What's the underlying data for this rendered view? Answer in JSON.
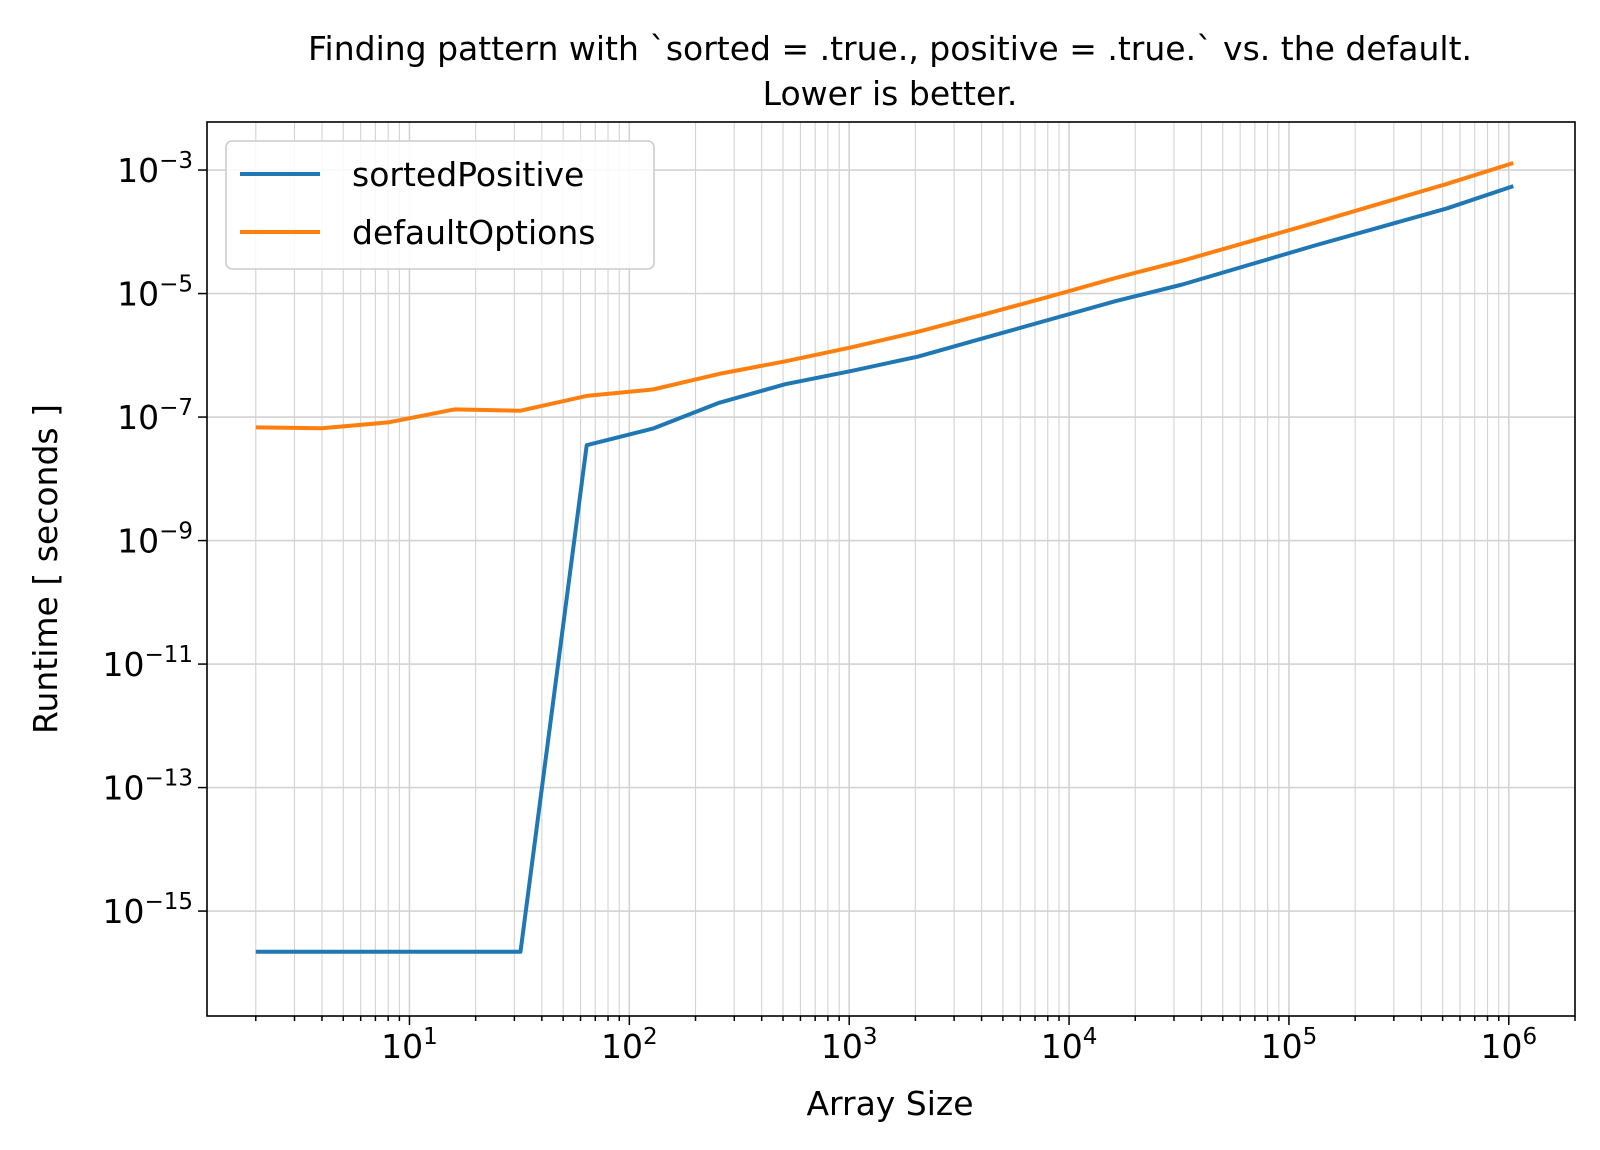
{
  "chart_data": {
    "type": "line",
    "title_line1": "Finding pattern with `sorted = .true., positive = .true.` vs. the default.",
    "title_line2": "Lower is better.",
    "xlabel": "Array Size",
    "ylabel": "Runtime [ seconds ]",
    "xscale": "log",
    "yscale": "log",
    "xlim": [
      1.2,
      2000000
    ],
    "ylim": [
      2e-17,
      0.006
    ],
    "grid": "both (major and minor)",
    "legend_position": "upper left",
    "x_ticks": [
      {
        "base": "10",
        "exp": "1",
        "value": 10
      },
      {
        "base": "10",
        "exp": "2",
        "value": 100
      },
      {
        "base": "10",
        "exp": "3",
        "value": 1000
      },
      {
        "base": "10",
        "exp": "4",
        "value": 10000
      },
      {
        "base": "10",
        "exp": "5",
        "value": 100000
      },
      {
        "base": "10",
        "exp": "6",
        "value": 1000000
      }
    ],
    "y_ticks": [
      {
        "base": "10",
        "exp": "−3",
        "value": 0.001
      },
      {
        "base": "10",
        "exp": "−5",
        "value": 1e-05
      },
      {
        "base": "10",
        "exp": "−7",
        "value": 1e-07
      },
      {
        "base": "10",
        "exp": "−9",
        "value": 1e-09
      },
      {
        "base": "10",
        "exp": "−11",
        "value": 1e-11
      },
      {
        "base": "10",
        "exp": "−13",
        "value": 1e-13
      },
      {
        "base": "10",
        "exp": "−15",
        "value": 1e-15
      }
    ],
    "x": [
      2,
      4,
      8,
      16,
      32,
      64,
      128,
      256,
      512,
      1024,
      2048,
      4096,
      8192,
      16384,
      32768,
      65536,
      131072,
      262144,
      524288,
      1048576
    ],
    "series": [
      {
        "name": "sortedPositive",
        "color": "#1f77b4",
        "values": [
          2.2e-16,
          2.2e-16,
          2.2e-16,
          2.2e-16,
          2.2e-16,
          3.5e-08,
          6.5e-08,
          1.7e-07,
          3.4e-07,
          5.6e-07,
          9.5e-07,
          1.9e-06,
          3.8e-06,
          7.6e-06,
          1.4e-05,
          2.9e-05,
          6e-05,
          0.00012,
          0.00024,
          0.00055
        ]
      },
      {
        "name": "defaultOptions",
        "color": "#ff7f0e",
        "values": [
          6.8e-08,
          6.6e-08,
          8.2e-08,
          1.33e-07,
          1.27e-07,
          2.2e-07,
          2.8e-07,
          5e-07,
          8e-07,
          1.35e-06,
          2.4e-06,
          4.6e-06,
          9e-06,
          1.8e-05,
          3.4e-05,
          6.9e-05,
          0.00014,
          0.00029,
          0.0006,
          0.0013
        ]
      }
    ]
  }
}
